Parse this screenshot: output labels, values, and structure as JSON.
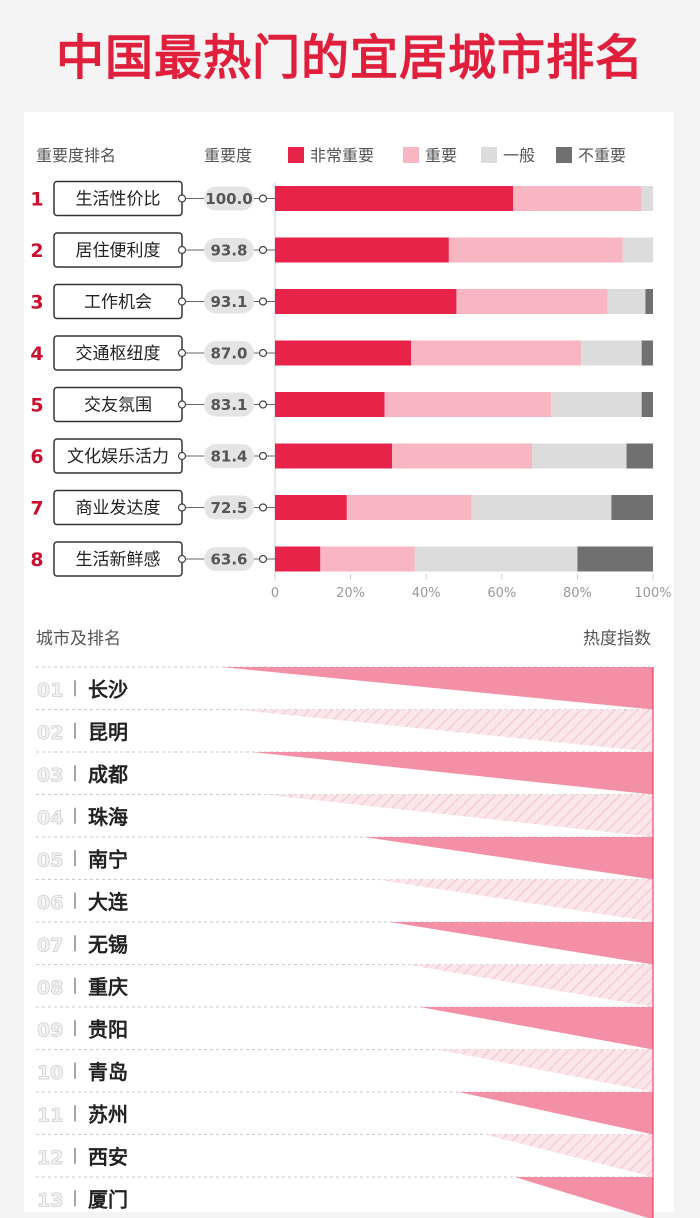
{
  "title": "中国最热门的宜居城市排名",
  "colors": {
    "very_important": "#e8234a",
    "important": "#f7b6c2",
    "normal": "#dcdcdc",
    "not_important": "#707070",
    "accent": "#c8102e"
  },
  "chart_data": [
    {
      "type": "bar",
      "orientation": "horizontal",
      "stacked": true,
      "rank_header": "重要度排名",
      "score_header": "重要度",
      "legend_position": "top",
      "categories": [
        "生活性价比",
        "居住便利度",
        "工作机会",
        "交通枢纽度",
        "交友氛围",
        "文化娱乐活力",
        "商业发达度",
        "生活新鲜感"
      ],
      "ranks": [
        "1",
        "2",
        "3",
        "4",
        "5",
        "6",
        "7",
        "8"
      ],
      "scores": [
        "100.0",
        "93.8",
        "93.1",
        "87.0",
        "83.1",
        "81.4",
        "72.5",
        "63.6"
      ],
      "series": [
        {
          "name": "非常重要",
          "color": "#e8234a",
          "values": [
            63,
            46,
            48,
            36,
            29,
            31,
            19,
            12
          ]
        },
        {
          "name": "重要",
          "color": "#f7b6c2",
          "values": [
            34,
            46,
            40,
            45,
            44,
            37,
            33,
            25
          ]
        },
        {
          "name": "一般",
          "color": "#dcdcdc",
          "values": [
            3,
            8,
            10,
            16,
            24,
            25,
            37,
            43
          ]
        },
        {
          "name": "不重要",
          "color": "#707070",
          "values": [
            0,
            0,
            2,
            3,
            3,
            7,
            11,
            20
          ]
        }
      ],
      "xlim": [
        0,
        100
      ],
      "xticks": [
        "0",
        "20%",
        "40%",
        "60%",
        "80%",
        "100%"
      ]
    },
    {
      "type": "bar",
      "orientation": "horizontal",
      "rank_header": "城市及排名",
      "value_header": "热度指数",
      "ranks": [
        "01",
        "02",
        "03",
        "04",
        "05",
        "06",
        "07",
        "08",
        "09",
        "10",
        "11",
        "12",
        "13"
      ],
      "categories": [
        "长沙",
        "昆明",
        "成都",
        "珠海",
        "南宁",
        "大连",
        "无锡",
        "重庆",
        "贵阳",
        "青岛",
        "苏州",
        "西安",
        "厦门"
      ],
      "values": [
        100,
        97,
        93,
        90,
        67,
        64,
        61,
        57,
        54,
        50,
        45,
        39,
        32
      ]
    }
  ]
}
